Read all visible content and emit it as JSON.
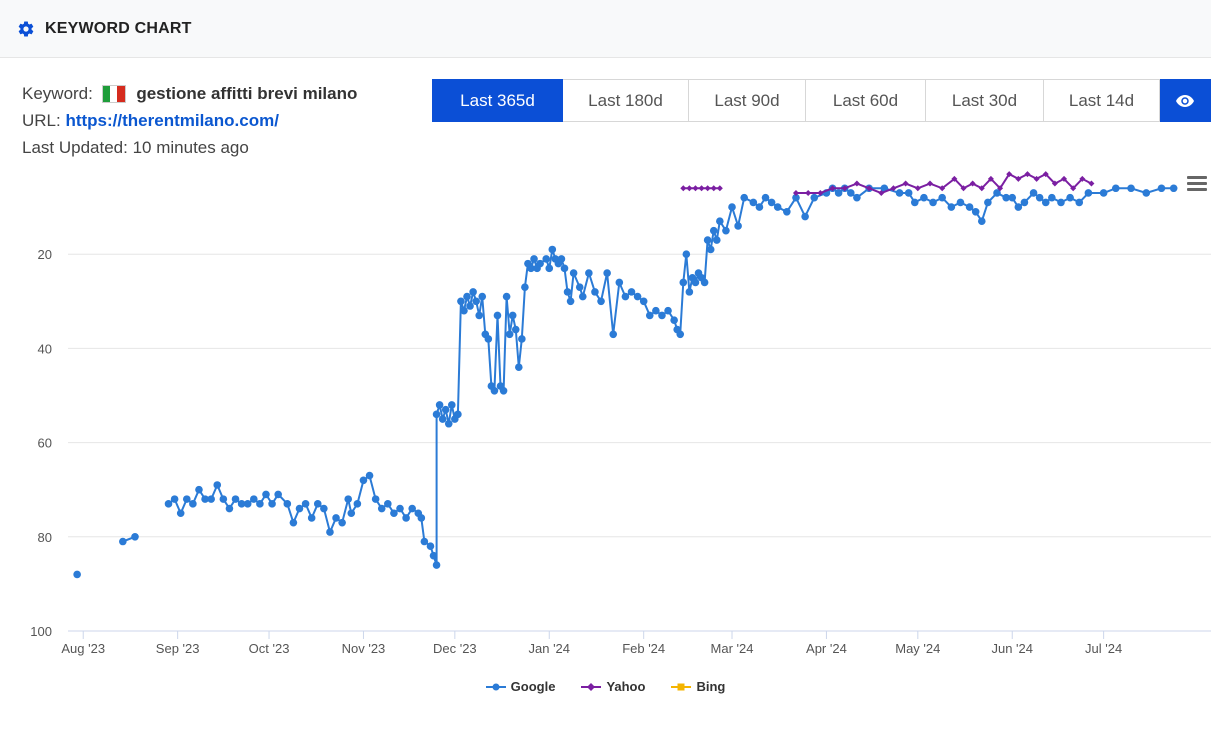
{
  "header": {
    "title": "KEYWORD CHART",
    "icon": "gear-icon"
  },
  "info": {
    "keyword_label": "Keyword:",
    "keyword": "gestione affitti brevi milano",
    "url_label": "URL:",
    "url": "https://therentmilano.com/",
    "updated_label": "Last Updated:",
    "updated_value": "10 minutes ago"
  },
  "ranges": [
    "Last 365d",
    "Last 180d",
    "Last 90d",
    "Last 60d",
    "Last 30d",
    "Last 14d"
  ],
  "active_range": "Last 365d",
  "colors": {
    "accent": "#0b4fd6",
    "google": "#2b7bd6",
    "yahoo": "#7b1fa2",
    "bing": "#f4b400",
    "url": "#0b57d0"
  },
  "chart_data": {
    "type": "line",
    "yaxis_reversed": true,
    "ylim": [
      100,
      0
    ],
    "yticks": [
      20,
      40,
      60,
      80,
      100
    ],
    "xlim": [
      "2023-07-27",
      "2024-07-31"
    ],
    "xticks": [
      {
        "date": "2023-08-01",
        "label": "Aug '23"
      },
      {
        "date": "2023-09-01",
        "label": "Sep '23"
      },
      {
        "date": "2023-10-01",
        "label": "Oct '23"
      },
      {
        "date": "2023-11-01",
        "label": "Nov '23"
      },
      {
        "date": "2023-12-01",
        "label": "Dec '23"
      },
      {
        "date": "2024-01-01",
        "label": "Jan '24"
      },
      {
        "date": "2024-02-01",
        "label": "Feb '24"
      },
      {
        "date": "2024-03-01",
        "label": "Mar '24"
      },
      {
        "date": "2024-04-01",
        "label": "Apr '24"
      },
      {
        "date": "2024-05-01",
        "label": "May '24"
      },
      {
        "date": "2024-06-01",
        "label": "Jun '24"
      },
      {
        "date": "2024-07-01",
        "label": "Jul '24"
      }
    ],
    "grid": true,
    "legend_position": "bottom-center",
    "series": [
      {
        "name": "Google",
        "color": "#2b7bd6",
        "marker": "circle",
        "points": [
          [
            "2023-07-30",
            88
          ],
          [
            "2023-08-14",
            81
          ],
          [
            "2023-08-18",
            80
          ],
          [
            "2023-08-29",
            73
          ],
          [
            "2023-08-31",
            72
          ],
          [
            "2023-09-02",
            75
          ],
          [
            "2023-09-04",
            72
          ],
          [
            "2023-09-06",
            73
          ],
          [
            "2023-09-08",
            70
          ],
          [
            "2023-09-10",
            72
          ],
          [
            "2023-09-12",
            72
          ],
          [
            "2023-09-14",
            69
          ],
          [
            "2023-09-16",
            72
          ],
          [
            "2023-09-18",
            74
          ],
          [
            "2023-09-20",
            72
          ],
          [
            "2023-09-22",
            73
          ],
          [
            "2023-09-24",
            73
          ],
          [
            "2023-09-26",
            72
          ],
          [
            "2023-09-28",
            73
          ],
          [
            "2023-09-30",
            71
          ],
          [
            "2023-10-02",
            73
          ],
          [
            "2023-10-04",
            71
          ],
          [
            "2023-10-07",
            73
          ],
          [
            "2023-10-09",
            77
          ],
          [
            "2023-10-11",
            74
          ],
          [
            "2023-10-13",
            73
          ],
          [
            "2023-10-15",
            76
          ],
          [
            "2023-10-17",
            73
          ],
          [
            "2023-10-19",
            74
          ],
          [
            "2023-10-21",
            79
          ],
          [
            "2023-10-23",
            76
          ],
          [
            "2023-10-25",
            77
          ],
          [
            "2023-10-27",
            72
          ],
          [
            "2023-10-28",
            75
          ],
          [
            "2023-10-30",
            73
          ],
          [
            "2023-11-01",
            68
          ],
          [
            "2023-11-03",
            67
          ],
          [
            "2023-11-05",
            72
          ],
          [
            "2023-11-07",
            74
          ],
          [
            "2023-11-09",
            73
          ],
          [
            "2023-11-11",
            75
          ],
          [
            "2023-11-13",
            74
          ],
          [
            "2023-11-15",
            76
          ],
          [
            "2023-11-17",
            74
          ],
          [
            "2023-11-19",
            75
          ],
          [
            "2023-11-20",
            76
          ],
          [
            "2023-11-21",
            81
          ],
          [
            "2023-11-23",
            82
          ],
          [
            "2023-11-24",
            84
          ],
          [
            "2023-11-25",
            86
          ],
          [
            "2023-11-25",
            54
          ],
          [
            "2023-11-26",
            52
          ],
          [
            "2023-11-27",
            55
          ],
          [
            "2023-11-28",
            53
          ],
          [
            "2023-11-29",
            56
          ],
          [
            "2023-11-30",
            52
          ],
          [
            "2023-12-01",
            55
          ],
          [
            "2023-12-02",
            54
          ],
          [
            "2023-12-03",
            30
          ],
          [
            "2023-12-04",
            32
          ],
          [
            "2023-12-05",
            29
          ],
          [
            "2023-12-06",
            31
          ],
          [
            "2023-12-07",
            28
          ],
          [
            "2023-12-08",
            30
          ],
          [
            "2023-12-09",
            33
          ],
          [
            "2023-12-10",
            29
          ],
          [
            "2023-12-11",
            37
          ],
          [
            "2023-12-12",
            38
          ],
          [
            "2023-12-13",
            48
          ],
          [
            "2023-12-14",
            49
          ],
          [
            "2023-12-15",
            33
          ],
          [
            "2023-12-16",
            48
          ],
          [
            "2023-12-17",
            49
          ],
          [
            "2023-12-18",
            29
          ],
          [
            "2023-12-19",
            37
          ],
          [
            "2023-12-20",
            33
          ],
          [
            "2023-12-21",
            36
          ],
          [
            "2023-12-22",
            44
          ],
          [
            "2023-12-23",
            38
          ],
          [
            "2023-12-24",
            27
          ],
          [
            "2023-12-25",
            22
          ],
          [
            "2023-12-26",
            23
          ],
          [
            "2023-12-27",
            21
          ],
          [
            "2023-12-28",
            23
          ],
          [
            "2023-12-29",
            22
          ],
          [
            "2023-12-31",
            21
          ],
          [
            "2024-01-01",
            23
          ],
          [
            "2024-01-02",
            19
          ],
          [
            "2024-01-03",
            21
          ],
          [
            "2024-01-04",
            22
          ],
          [
            "2024-01-05",
            21
          ],
          [
            "2024-01-06",
            23
          ],
          [
            "2024-01-07",
            28
          ],
          [
            "2024-01-08",
            30
          ],
          [
            "2024-01-09",
            24
          ],
          [
            "2024-01-11",
            27
          ],
          [
            "2024-01-12",
            29
          ],
          [
            "2024-01-14",
            24
          ],
          [
            "2024-01-16",
            28
          ],
          [
            "2024-01-18",
            30
          ],
          [
            "2024-01-20",
            24
          ],
          [
            "2024-01-22",
            37
          ],
          [
            "2024-01-24",
            26
          ],
          [
            "2024-01-26",
            29
          ],
          [
            "2024-01-28",
            28
          ],
          [
            "2024-01-30",
            29
          ],
          [
            "2024-02-01",
            30
          ],
          [
            "2024-02-03",
            33
          ],
          [
            "2024-02-05",
            32
          ],
          [
            "2024-02-07",
            33
          ],
          [
            "2024-02-09",
            32
          ],
          [
            "2024-02-11",
            34
          ],
          [
            "2024-02-12",
            36
          ],
          [
            "2024-02-13",
            37
          ],
          [
            "2024-02-14",
            26
          ],
          [
            "2024-02-15",
            20
          ],
          [
            "2024-02-16",
            28
          ],
          [
            "2024-02-17",
            25
          ],
          [
            "2024-02-18",
            26
          ],
          [
            "2024-02-19",
            24
          ],
          [
            "2024-02-20",
            25
          ],
          [
            "2024-02-21",
            26
          ],
          [
            "2024-02-22",
            17
          ],
          [
            "2024-02-23",
            19
          ],
          [
            "2024-02-24",
            15
          ],
          [
            "2024-02-25",
            17
          ],
          [
            "2024-02-26",
            13
          ],
          [
            "2024-02-28",
            15
          ],
          [
            "2024-03-01",
            10
          ],
          [
            "2024-03-03",
            14
          ],
          [
            "2024-03-05",
            8
          ],
          [
            "2024-03-08",
            9
          ],
          [
            "2024-03-10",
            10
          ],
          [
            "2024-03-12",
            8
          ],
          [
            "2024-03-14",
            9
          ],
          [
            "2024-03-16",
            10
          ],
          [
            "2024-03-19",
            11
          ],
          [
            "2024-03-22",
            8
          ],
          [
            "2024-03-25",
            12
          ],
          [
            "2024-03-28",
            8
          ],
          [
            "2024-04-01",
            7
          ],
          [
            "2024-04-03",
            6
          ],
          [
            "2024-04-05",
            7
          ],
          [
            "2024-04-07",
            6
          ],
          [
            "2024-04-09",
            7
          ],
          [
            "2024-04-11",
            8
          ],
          [
            "2024-04-15",
            6
          ],
          [
            "2024-04-20",
            6
          ],
          [
            "2024-04-25",
            7
          ],
          [
            "2024-04-28",
            7
          ],
          [
            "2024-04-30",
            9
          ],
          [
            "2024-05-03",
            8
          ],
          [
            "2024-05-06",
            9
          ],
          [
            "2024-05-09",
            8
          ],
          [
            "2024-05-12",
            10
          ],
          [
            "2024-05-15",
            9
          ],
          [
            "2024-05-18",
            10
          ],
          [
            "2024-05-20",
            11
          ],
          [
            "2024-05-22",
            13
          ],
          [
            "2024-05-24",
            9
          ],
          [
            "2024-05-27",
            7
          ],
          [
            "2024-05-30",
            8
          ],
          [
            "2024-06-01",
            8
          ],
          [
            "2024-06-03",
            10
          ],
          [
            "2024-06-05",
            9
          ],
          [
            "2024-06-08",
            7
          ],
          [
            "2024-06-10",
            8
          ],
          [
            "2024-06-12",
            9
          ],
          [
            "2024-06-14",
            8
          ],
          [
            "2024-06-17",
            9
          ],
          [
            "2024-06-20",
            8
          ],
          [
            "2024-06-23",
            9
          ],
          [
            "2024-06-26",
            7
          ],
          [
            "2024-07-01",
            7
          ],
          [
            "2024-07-05",
            6
          ],
          [
            "2024-07-10",
            6
          ],
          [
            "2024-07-15",
            7
          ],
          [
            "2024-07-20",
            6
          ],
          [
            "2024-07-24",
            6
          ]
        ]
      },
      {
        "name": "Yahoo",
        "color": "#7b1fa2",
        "marker": "diamond",
        "points": [
          [
            "2024-02-14",
            6
          ],
          [
            "2024-02-16",
            6
          ],
          [
            "2024-02-18",
            6
          ],
          [
            "2024-02-20",
            6
          ],
          [
            "2024-02-22",
            6
          ],
          [
            "2024-02-24",
            6
          ],
          [
            "2024-02-26",
            6
          ],
          [
            "2024-03-22",
            7
          ],
          [
            "2024-03-26",
            7
          ],
          [
            "2024-03-30",
            7
          ],
          [
            "2024-04-03",
            6
          ],
          [
            "2024-04-07",
            6
          ],
          [
            "2024-04-11",
            5
          ],
          [
            "2024-04-15",
            6
          ],
          [
            "2024-04-19",
            7
          ],
          [
            "2024-04-23",
            6
          ],
          [
            "2024-04-27",
            5
          ],
          [
            "2024-05-01",
            6
          ],
          [
            "2024-05-05",
            5
          ],
          [
            "2024-05-09",
            6
          ],
          [
            "2024-05-13",
            4
          ],
          [
            "2024-05-16",
            6
          ],
          [
            "2024-05-19",
            5
          ],
          [
            "2024-05-22",
            6
          ],
          [
            "2024-05-25",
            4
          ],
          [
            "2024-05-28",
            6
          ],
          [
            "2024-05-31",
            3
          ],
          [
            "2024-06-03",
            4
          ],
          [
            "2024-06-06",
            3
          ],
          [
            "2024-06-09",
            4
          ],
          [
            "2024-06-12",
            3
          ],
          [
            "2024-06-15",
            5
          ],
          [
            "2024-06-18",
            4
          ],
          [
            "2024-06-21",
            6
          ],
          [
            "2024-06-24",
            4
          ],
          [
            "2024-06-27",
            5
          ]
        ]
      },
      {
        "name": "Bing",
        "color": "#f4b400",
        "marker": "square",
        "points": []
      }
    ]
  }
}
